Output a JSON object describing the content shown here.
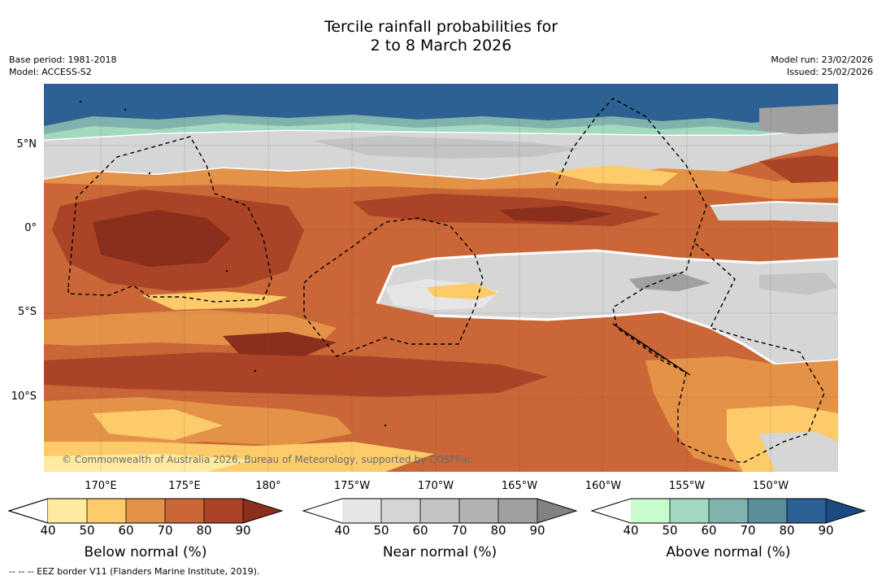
{
  "title": {
    "line1": "Tercile rainfall probabilities for",
    "line2": "2 to 8 March 2026"
  },
  "meta": {
    "base_period": "Base period: 1981-2018",
    "model": "Model: ACCESS-S2",
    "model_run": "Model run: 23/02/2026",
    "issued": "Issued: 25/02/2026"
  },
  "map": {
    "copyright": "© Commonwealth of Australia 2026, Bureau of Meteorology, supported by COSPPac",
    "lat_labels": [
      "5°N",
      "0°",
      "5°S",
      "10°S"
    ],
    "lon_labels": [
      "170°E",
      "175°E",
      "180°",
      "175°W",
      "170°W",
      "165°W",
      "160°W",
      "155°W",
      "150°W"
    ]
  },
  "legends": [
    {
      "title": "Below normal (%)",
      "ticks": [
        "40",
        "50",
        "60",
        "70",
        "80",
        "90"
      ],
      "colors": [
        "#ffffff",
        "#feeba0",
        "#fdcb69",
        "#e49247",
        "#cb6637",
        "#ab4427",
        "#8a2f1b"
      ]
    },
    {
      "title": "Near normal (%)",
      "ticks": [
        "40",
        "50",
        "60",
        "70",
        "80",
        "90"
      ],
      "colors": [
        "#ffffff",
        "#e6e6e6",
        "#d6d6d6",
        "#c4c4c4",
        "#b2b2b2",
        "#a0a0a0",
        "#828282"
      ]
    },
    {
      "title": "Above normal (%)",
      "ticks": [
        "40",
        "50",
        "60",
        "70",
        "80",
        "90"
      ],
      "colors": [
        "#ffffff",
        "#c8fccd",
        "#a2d9c0",
        "#80b3ad",
        "#5a8e9b",
        "#2d6193",
        "#1a4a80"
      ]
    }
  ],
  "footnote": "-- -- -- EEZ border V11 (Flanders Marine Institute, 2019)."
}
